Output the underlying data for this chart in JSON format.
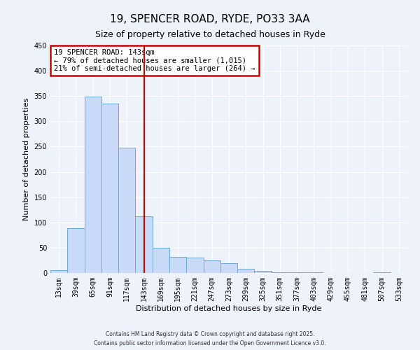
{
  "title": "19, SPENCER ROAD, RYDE, PO33 3AA",
  "subtitle": "Size of property relative to detached houses in Ryde",
  "xlabel": "Distribution of detached houses by size in Ryde",
  "ylabel": "Number of detached properties",
  "bar_labels": [
    "13sqm",
    "39sqm",
    "65sqm",
    "91sqm",
    "117sqm",
    "143sqm",
    "169sqm",
    "195sqm",
    "221sqm",
    "247sqm",
    "273sqm",
    "299sqm",
    "325sqm",
    "351sqm",
    "377sqm",
    "403sqm",
    "429sqm",
    "455sqm",
    "481sqm",
    "507sqm",
    "533sqm"
  ],
  "bar_values": [
    5,
    89,
    349,
    335,
    248,
    112,
    50,
    32,
    30,
    25,
    20,
    9,
    4,
    1,
    2,
    1,
    0,
    0,
    0,
    1,
    0
  ],
  "bar_color": "#c9daf8",
  "bar_edge_color": "#6fa8dc",
  "vline_x": 5,
  "vline_color": "#cc0000",
  "ylim": [
    0,
    450
  ],
  "yticks": [
    0,
    50,
    100,
    150,
    200,
    250,
    300,
    350,
    400,
    450
  ],
  "annotation_title": "19 SPENCER ROAD: 143sqm",
  "annotation_line1": "← 79% of detached houses are smaller (1,015)",
  "annotation_line2": "21% of semi-detached houses are larger (264) →",
  "annotation_box_color": "#cc0000",
  "footer1": "Contains HM Land Registry data © Crown copyright and database right 2025.",
  "footer2": "Contains public sector information licensed under the Open Government Licence v3.0.",
  "bg_color": "#eef2fb",
  "grid_color": "#ffffff",
  "title_fontsize": 11,
  "subtitle_fontsize": 9,
  "axis_label_fontsize": 8,
  "tick_fontsize": 7,
  "annotation_fontsize": 7.5,
  "footer_fontsize": 5.5
}
